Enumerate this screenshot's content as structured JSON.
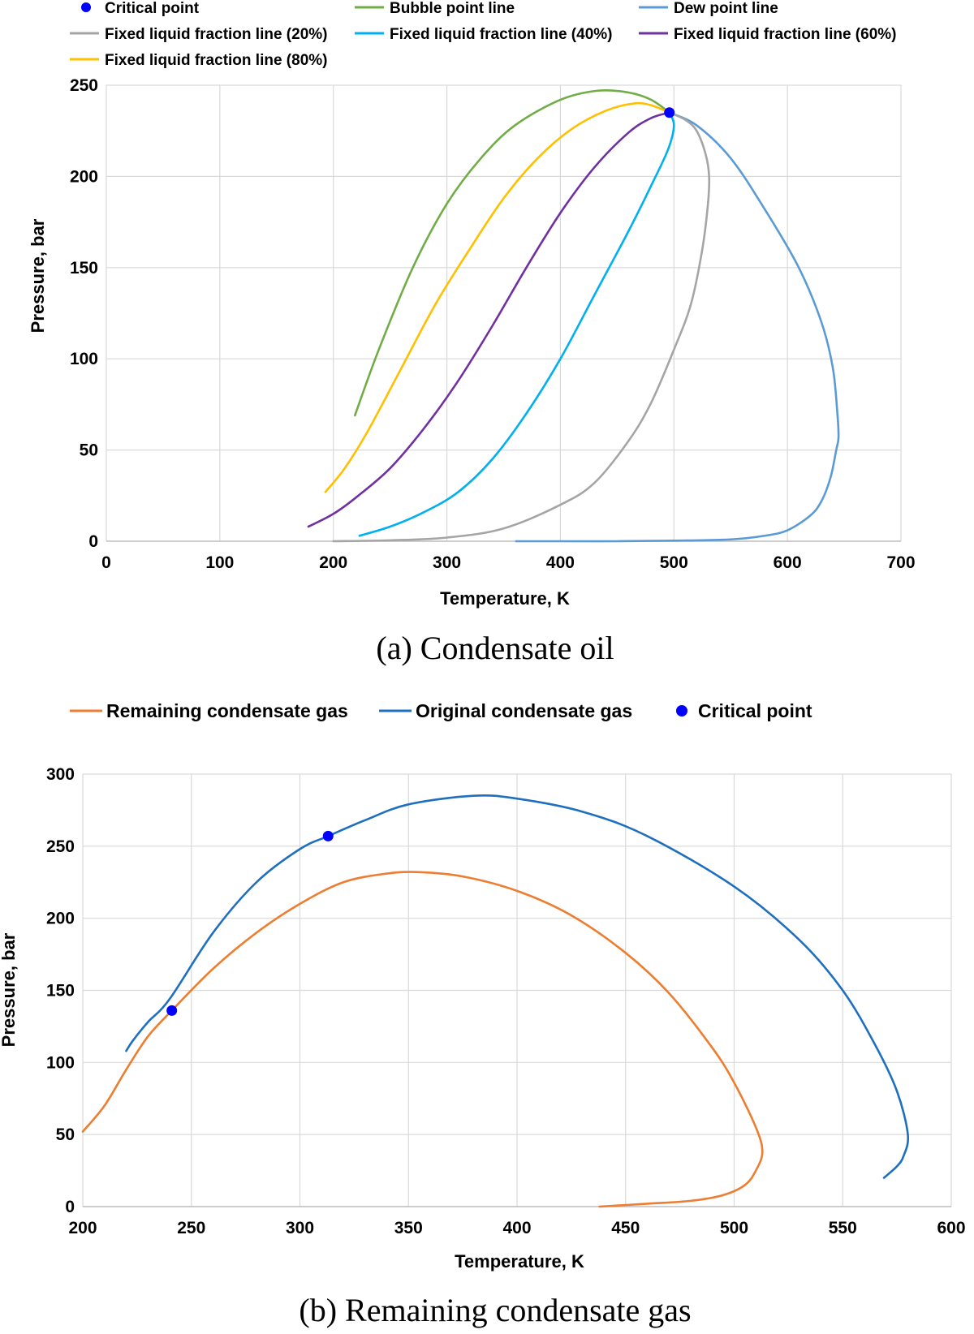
{
  "chart_data": [
    {
      "type": "line",
      "caption": "(a)  Condensate oil",
      "xlabel": "Temperature, K",
      "ylabel": "Pressure, bar",
      "xlim": [
        0,
        700
      ],
      "ylim": [
        0,
        250
      ],
      "xticks": [
        0,
        100,
        200,
        300,
        400,
        500,
        600,
        700
      ],
      "yticks": [
        0,
        50,
        100,
        150,
        200,
        250
      ],
      "grid": true,
      "legend_position": "top",
      "legend": [
        {
          "label": "Critical point",
          "kind": "marker",
          "color": "#0000ff"
        },
        {
          "label": "Bubble point line",
          "kind": "line",
          "color": "#70ad47"
        },
        {
          "label": "Dew point line",
          "kind": "line",
          "color": "#5b9bd5"
        },
        {
          "label": "Fixed liquid fraction line (20%)",
          "kind": "line",
          "color": "#a5a5a5"
        },
        {
          "label": "Fixed liquid fraction line (40%)",
          "kind": "line",
          "color": "#00b0f0"
        },
        {
          "label": "Fixed liquid fraction line (60%)",
          "kind": "line",
          "color": "#7030a0"
        },
        {
          "label": "Fixed liquid fraction line (80%)",
          "kind": "line",
          "color": "#ffc000"
        }
      ],
      "series": [
        {
          "name": "Bubble point line",
          "color": "#70ad47",
          "points": [
            [
              219,
              69
            ],
            [
              240,
              105
            ],
            [
              270,
              150
            ],
            [
              300,
              185
            ],
            [
              330,
              210
            ],
            [
              360,
              228
            ],
            [
              400,
              242
            ],
            [
              433,
              247
            ],
            [
              460,
              246
            ],
            [
              480,
              242
            ],
            [
              496,
              235
            ]
          ]
        },
        {
          "name": "Dew point line",
          "color": "#5b9bd5",
          "points": [
            [
              361,
              0
            ],
            [
              400,
              0
            ],
            [
              450,
              0
            ],
            [
              500,
              0.3
            ],
            [
              550,
              1
            ],
            [
              580,
              3
            ],
            [
              600,
              6
            ],
            [
              620,
              14
            ],
            [
              630,
              22
            ],
            [
              638,
              35
            ],
            [
              643,
              50
            ],
            [
              645,
              57
            ],
            [
              644,
              70
            ],
            [
              640,
              95
            ],
            [
              630,
              120
            ],
            [
              610,
              150
            ],
            [
              580,
              182
            ],
            [
              550,
              210
            ],
            [
              520,
              228
            ],
            [
              496,
              235
            ]
          ]
        },
        {
          "name": "Fixed liquid fraction line (20%)",
          "color": "#a5a5a5",
          "points": [
            [
              200,
              0
            ],
            [
              250,
              0.5
            ],
            [
              300,
              2
            ],
            [
              350,
              7
            ],
            [
              400,
              20
            ],
            [
              430,
              32
            ],
            [
              460,
              55
            ],
            [
              480,
              76
            ],
            [
              500,
              105
            ],
            [
              515,
              130
            ],
            [
              525,
              160
            ],
            [
              530,
              185
            ],
            [
              531,
              200
            ],
            [
              528,
              212
            ],
            [
              520,
              225
            ],
            [
              510,
              231
            ],
            [
              496,
              235
            ]
          ]
        },
        {
          "name": "Fixed liquid fraction line (40%)",
          "color": "#00b0f0",
          "points": [
            [
              223,
              3
            ],
            [
              250,
              8
            ],
            [
              280,
              16
            ],
            [
              310,
              27
            ],
            [
              340,
              45
            ],
            [
              370,
              70
            ],
            [
              400,
              100
            ],
            [
              430,
              135
            ],
            [
              460,
              170
            ],
            [
              480,
              195
            ],
            [
              495,
              215
            ],
            [
              500,
              228
            ],
            [
              496,
              235
            ]
          ]
        },
        {
          "name": "Fixed liquid fraction line (60%)",
          "color": "#7030a0",
          "points": [
            [
              178,
              8
            ],
            [
              200,
              15
            ],
            [
              220,
              24
            ],
            [
              250,
              40
            ],
            [
              280,
              62
            ],
            [
              310,
              88
            ],
            [
              340,
              118
            ],
            [
              370,
              150
            ],
            [
              400,
              180
            ],
            [
              430,
              205
            ],
            [
              460,
              224
            ],
            [
              480,
              232
            ],
            [
              496,
              235
            ]
          ]
        },
        {
          "name": "Fixed liquid fraction line (80%)",
          "color": "#ffc000",
          "points": [
            [
              193,
              27
            ],
            [
              210,
              40
            ],
            [
              230,
              60
            ],
            [
              260,
              95
            ],
            [
              290,
              130
            ],
            [
              320,
              160
            ],
            [
              350,
              188
            ],
            [
              380,
              210
            ],
            [
              410,
              226
            ],
            [
              440,
              236
            ],
            [
              465,
              240
            ],
            [
              480,
              239
            ],
            [
              496,
              235
            ]
          ]
        }
      ],
      "critical_points": [
        {
          "x": 496,
          "y": 235
        }
      ]
    },
    {
      "type": "line",
      "caption": "(b)  Remaining condensate gas",
      "xlabel": "Temperature, K",
      "ylabel": "Pressure, bar",
      "xlim": [
        200,
        600
      ],
      "ylim": [
        0,
        300
      ],
      "xticks": [
        200,
        250,
        300,
        350,
        400,
        450,
        500,
        550,
        600
      ],
      "yticks": [
        0,
        50,
        100,
        150,
        200,
        250,
        300
      ],
      "grid": true,
      "legend_position": "top",
      "legend": [
        {
          "label": "Remaining condensate gas",
          "kind": "line",
          "color": "#ed7d31"
        },
        {
          "label": "Original condensate gas",
          "kind": "line",
          "color": "#1f6fbf"
        },
        {
          "label": "Critical point",
          "kind": "marker",
          "color": "#0000ff"
        }
      ],
      "series": [
        {
          "name": "Remaining condensate gas",
          "color": "#ed7d31",
          "points": [
            [
              200,
              52
            ],
            [
              210,
              70
            ],
            [
              220,
              95
            ],
            [
              230,
              118
            ],
            [
              241,
              136
            ],
            [
              260,
              165
            ],
            [
              280,
              190
            ],
            [
              300,
              210
            ],
            [
              320,
              225
            ],
            [
              340,
              231
            ],
            [
              355,
              232
            ],
            [
              375,
              229
            ],
            [
              400,
              219
            ],
            [
              425,
              202
            ],
            [
              450,
              176
            ],
            [
              470,
              148
            ],
            [
              490,
              110
            ],
            [
              500,
              86
            ],
            [
              510,
              55
            ],
            [
              513,
              38
            ],
            [
              510,
              25
            ],
            [
              505,
              15
            ],
            [
              495,
              8
            ],
            [
              480,
              4
            ],
            [
              460,
              2
            ],
            [
              438,
              0
            ]
          ]
        },
        {
          "name": "Original condensate gas",
          "color": "#1f6fbf",
          "points": [
            [
              220,
              108
            ],
            [
              223,
              115
            ],
            [
              230,
              128
            ],
            [
              240,
              144
            ],
            [
              260,
              190
            ],
            [
              280,
              225
            ],
            [
              300,
              248
            ],
            [
              313,
              257
            ],
            [
              330,
              268
            ],
            [
              350,
              279
            ],
            [
              380,
              285
            ],
            [
              400,
              283
            ],
            [
              430,
              274
            ],
            [
              460,
              257
            ],
            [
              500,
              222
            ],
            [
              530,
              185
            ],
            [
              550,
              150
            ],
            [
              565,
              112
            ],
            [
              575,
              80
            ],
            [
              580,
              50
            ],
            [
              578,
              35
            ],
            [
              575,
              28
            ],
            [
              569,
              20
            ]
          ]
        }
      ],
      "critical_points": [
        {
          "x": 241,
          "y": 136
        },
        {
          "x": 313,
          "y": 257
        }
      ]
    }
  ]
}
